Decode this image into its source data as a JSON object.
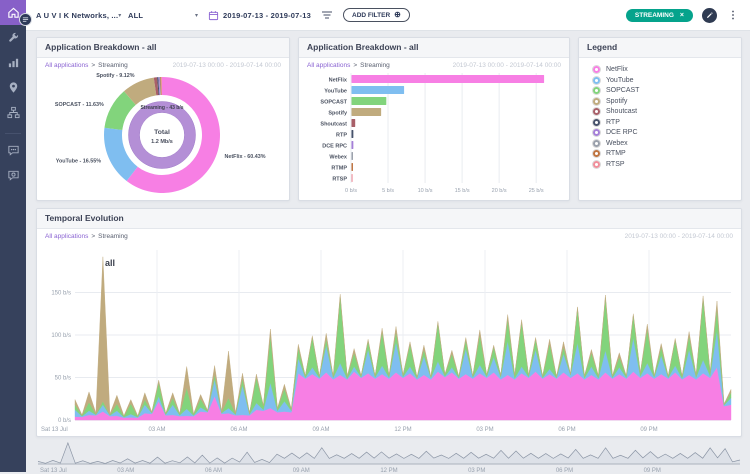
{
  "topbar": {
    "company": "A U V I K Networks, ...",
    "scope": "ALL",
    "date_range": "2019-07-13 - 2019-07-13",
    "add_filter_label": "ADD FILTER",
    "filter_badge": "STREAMING",
    "accent": "#05a38c"
  },
  "sidebar": {
    "items": [
      "home",
      "tools",
      "reports",
      "locations",
      "network",
      "chat",
      "feedback"
    ],
    "active": "home"
  },
  "breadcrumb": {
    "root": "All applications",
    "separator": ">",
    "current": "Streaming"
  },
  "period": "2019-07-13 00:00 - 2019-07-14 00:00",
  "apps": [
    {
      "name": "NetFlix",
      "color": "#f77fe4"
    },
    {
      "name": "YouTube",
      "color": "#7fbef0"
    },
    {
      "name": "SOPCAST",
      "color": "#82d47c"
    },
    {
      "name": "Spotify",
      "color": "#c0ab7e"
    },
    {
      "name": "Shoutcast",
      "color": "#a85f68"
    },
    {
      "name": "RTP",
      "color": "#47526b"
    },
    {
      "name": "DCE RPC",
      "color": "#a57fd8"
    },
    {
      "name": "Webex",
      "color": "#9aa0ab"
    },
    {
      "name": "RTMP",
      "color": "#bf7440"
    },
    {
      "name": "RTSP",
      "color": "#f08f9b"
    }
  ],
  "panels": {
    "donut": {
      "title": "Application Breakdown - all"
    },
    "bars": {
      "title": "Application Breakdown - all"
    },
    "legend": {
      "title": "Legend"
    },
    "temporal": {
      "title": "Temporal Evolution"
    }
  },
  "chart_data": [
    {
      "type": "pie",
      "panel": "donut",
      "segments": [
        {
          "label": "NetFlix",
          "value": 60.43,
          "labeled": true
        },
        {
          "label": "YouTube",
          "value": 16.55,
          "labeled": true
        },
        {
          "label": "SOPCAST",
          "value": 11.63,
          "labeled": true
        },
        {
          "label": "Spotify",
          "value": 9.12,
          "labeled": true
        },
        {
          "label": "Shoutcast",
          "value": 0.9,
          "labeled": false
        },
        {
          "label": "RTP",
          "value": 0.35,
          "labeled": false
        },
        {
          "label": "DCE RPC",
          "value": 0.3,
          "labeled": false
        },
        {
          "label": "Webex",
          "value": 0.25,
          "labeled": false
        },
        {
          "label": "RTMP",
          "value": 0.25,
          "labeled": false
        },
        {
          "label": "RTSP",
          "value": 0.22,
          "labeled": false
        }
      ],
      "inner_ring": {
        "label": "Streaming - 43 b/s",
        "color": "#b48fd6"
      },
      "center": {
        "title": "Total",
        "value": "1.2 Mb/s"
      }
    },
    {
      "type": "bar",
      "panel": "bars",
      "orientation": "horizontal",
      "categories": [
        "NetFlix",
        "YouTube",
        "SOPCAST",
        "Spotify",
        "Shoutcast",
        "RTP",
        "DCE RPC",
        "Webex",
        "RTMP",
        "RTSP"
      ],
      "values": [
        26,
        7.1,
        4.7,
        4,
        0.5,
        0.25,
        0.25,
        0.2,
        0.2,
        0.15
      ],
      "xlim": [
        0,
        27
      ],
      "xtick_values": [
        0,
        5,
        10,
        15,
        20,
        25
      ],
      "xtick_labels": [
        "0 b/s",
        "5 b/s",
        "10 b/s",
        "15 b/s",
        "20 b/s",
        "25 b/s"
      ]
    },
    {
      "type": "area",
      "panel": "temporal",
      "stacked": true,
      "group_label": "all",
      "x_hours": [
        0,
        24
      ],
      "sample_interval_hours": 0.5,
      "ylim": [
        0,
        200
      ],
      "ytick_values": [
        0,
        50,
        100,
        150
      ],
      "ytick_labels": [
        "0 b/s",
        "50 b/s",
        "100 b/s",
        "150 b/s"
      ],
      "xticks": [
        "Sat 13 Jul",
        "03 AM",
        "06 AM",
        "09 AM",
        "12 PM",
        "03 PM",
        "06 PM",
        "09 PM"
      ],
      "series": [
        {
          "name": "NetFlix",
          "values": [
            4,
            6,
            10,
            5,
            3,
            8,
            22,
            6,
            5,
            10,
            28,
            8,
            6,
            12,
            14,
            10,
            55,
            54,
            56,
            53,
            57,
            55,
            54,
            56,
            55,
            53,
            57,
            56,
            54,
            55,
            56,
            53,
            55,
            57,
            54,
            56,
            55,
            53,
            56,
            54,
            57,
            55,
            54,
            56,
            53,
            55,
            62,
            18
          ]
        },
        {
          "name": "YouTube",
          "values": [
            8,
            5,
            8,
            6,
            4,
            10,
            6,
            12,
            8,
            5,
            20,
            6,
            35,
            8,
            30,
            12,
            18,
            8,
            32,
            14,
            6,
            28,
            10,
            36,
            8,
            22,
            12,
            6,
            30,
            10,
            18,
            40,
            8,
            26,
            6,
            22,
            36,
            10,
            26,
            8,
            40,
            12,
            22,
            8,
            30,
            16,
            44,
            8
          ]
        },
        {
          "name": "SOPCAST",
          "values": [
            6,
            10,
            4,
            8,
            12,
            6,
            16,
            8,
            25,
            10,
            6,
            12,
            8,
            30,
            55,
            15,
            12,
            35,
            8,
            78,
            16,
            10,
            40,
            12,
            26,
            8,
            45,
            16,
            10,
            35,
            12,
            26,
            52,
            12,
            30,
            8,
            40,
            16,
            62,
            12,
            26,
            40,
            10,
            30,
            16,
            72,
            26,
            6
          ]
        },
        {
          "name": "Spotify",
          "values": [
            6,
            12,
            170,
            10,
            5,
            8,
            3,
            6,
            25,
            5,
            10,
            55,
            6,
            4,
            8,
            5,
            4,
            2,
            6,
            3,
            5,
            2,
            4,
            6,
            3,
            5,
            2,
            4,
            3,
            6,
            2,
            5,
            3,
            2,
            5,
            6,
            2,
            4,
            3,
            5,
            2,
            6,
            4,
            2,
            5,
            3,
            8,
            4
          ]
        }
      ]
    },
    {
      "type": "area",
      "panel": "overview",
      "note": "grey overview of total streaming traffic over the same 24h window",
      "xticks": [
        "Sat 13 Jul",
        "03 AM",
        "06 AM",
        "09 AM",
        "12 PM",
        "03 PM",
        "06 PM",
        "09 PM"
      ]
    }
  ]
}
